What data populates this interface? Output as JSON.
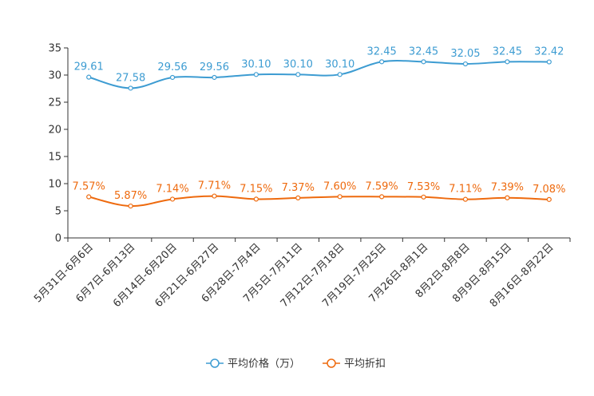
{
  "chart_data": {
    "type": "line",
    "title": "",
    "xlabel": "",
    "ylabel": "",
    "ylim": [
      0,
      35
    ],
    "yticks": [
      0,
      5,
      10,
      15,
      20,
      25,
      30,
      35
    ],
    "ytick_labels": [
      "0",
      "5",
      "10",
      "15",
      "20",
      "25",
      "30",
      "35"
    ],
    "grid": false,
    "legend_position": "bottom-center",
    "categories": [
      "5月31日-6月6日",
      "6月7日-6月13日",
      "6月14日-6月20日",
      "6月21日-6月27日",
      "6月28日-7月4日",
      "7月5日-7月11日",
      "7月12日-7月18日",
      "7月19日-7月25日",
      "7月26日-8月1日",
      "8月2日-8月8日",
      "8月9日-8月15日",
      "8月16日-8月22日"
    ],
    "series": [
      {
        "name": "平均价格（万）",
        "color": "#3d9cd2",
        "values": [
          29.61,
          27.58,
          29.56,
          29.56,
          30.1,
          30.1,
          30.1,
          32.45,
          32.45,
          32.05,
          32.45,
          32.42
        ],
        "labels": [
          "29.61",
          "27.58",
          "29.56",
          "29.56",
          "30.10",
          "30.10",
          "30.10",
          "32.45",
          "32.45",
          "32.05",
          "32.45",
          "32.42"
        ]
      },
      {
        "name": "平均折扣",
        "color": "#ee6a0e",
        "values": [
          7.57,
          5.87,
          7.14,
          7.71,
          7.15,
          7.37,
          7.6,
          7.59,
          7.53,
          7.11,
          7.39,
          7.08
        ],
        "labels": [
          "7.57%",
          "5.87%",
          "7.14%",
          "7.71%",
          "7.15%",
          "7.37%",
          "7.60%",
          "7.59%",
          "7.53%",
          "7.11%",
          "7.39%",
          "7.08%"
        ]
      }
    ]
  }
}
